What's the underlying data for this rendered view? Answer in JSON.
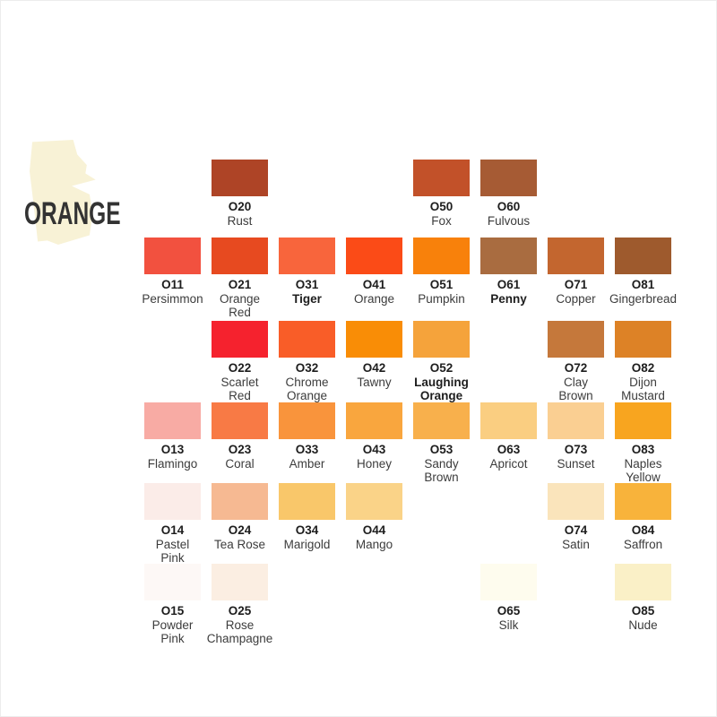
{
  "page": {
    "title": "ORANGE"
  },
  "theme": {
    "background": "#ffffff",
    "blob_color": "#F8F2D6",
    "title_color": "#333333",
    "code_color": "#1d1d1d",
    "name_color": "#3c3c3c"
  },
  "grid": {
    "columns": 8,
    "rows": 6,
    "swatches": [
      {
        "code": "O20",
        "name": "Rust",
        "color": "#AE4426",
        "row": 0,
        "col": 1
      },
      {
        "code": "O50",
        "name": "Fox",
        "color": "#C25129",
        "row": 0,
        "col": 4
      },
      {
        "code": "O60",
        "name": "Fulvous",
        "color": "#A65B34",
        "row": 0,
        "col": 5
      },
      {
        "code": "O11",
        "name": "Persimmon",
        "color": "#F2513F",
        "row": 1,
        "col": 0
      },
      {
        "code": "O21",
        "name": "Orange\nRed",
        "color": "#E74A20",
        "row": 1,
        "col": 1
      },
      {
        "code": "O31",
        "name": "Tiger",
        "color": "#F8653C",
        "row": 1,
        "col": 2,
        "bold_name": true
      },
      {
        "code": "O41",
        "name": "Orange",
        "color": "#FB4B17",
        "row": 1,
        "col": 3
      },
      {
        "code": "O51",
        "name": "Pumpkin",
        "color": "#F8810B",
        "row": 1,
        "col": 4
      },
      {
        "code": "O61",
        "name": "Penny",
        "color": "#A96C40",
        "row": 1,
        "col": 5,
        "bold_name": true
      },
      {
        "code": "O71",
        "name": "Copper",
        "color": "#C3662F",
        "row": 1,
        "col": 6
      },
      {
        "code": "O81",
        "name": "Gingerbread",
        "color": "#9E5A2D",
        "row": 1,
        "col": 7
      },
      {
        "code": "O22",
        "name": "Scarlet\nRed",
        "color": "#F5222E",
        "row": 2,
        "col": 1
      },
      {
        "code": "O32",
        "name": "Chrome\nOrange",
        "color": "#F95D28",
        "row": 2,
        "col": 2
      },
      {
        "code": "O42",
        "name": "Tawny",
        "color": "#F98D06",
        "row": 2,
        "col": 3
      },
      {
        "code": "O52",
        "name": "Laughing\nOrange",
        "color": "#F5A33B",
        "row": 2,
        "col": 4,
        "bold_name": true
      },
      {
        "code": "O72",
        "name": "Clay\nBrown",
        "color": "#C5783B",
        "row": 2,
        "col": 6
      },
      {
        "code": "O82",
        "name": "Dijon\nMustard",
        "color": "#DD8226",
        "row": 2,
        "col": 7
      },
      {
        "code": "O13",
        "name": "Flamingo",
        "color": "#F8ABA4",
        "row": 3,
        "col": 0
      },
      {
        "code": "O23",
        "name": "Coral",
        "color": "#F87A45",
        "row": 3,
        "col": 1
      },
      {
        "code": "O33",
        "name": "Amber",
        "color": "#F9943C",
        "row": 3,
        "col": 2
      },
      {
        "code": "O43",
        "name": "Honey",
        "color": "#F9A63E",
        "row": 3,
        "col": 3
      },
      {
        "code": "O53",
        "name": "Sandy\nBrown",
        "color": "#F8B04C",
        "row": 3,
        "col": 4
      },
      {
        "code": "O63",
        "name": "Apricot",
        "color": "#FACE81",
        "row": 3,
        "col": 5
      },
      {
        "code": "O73",
        "name": "Sunset",
        "color": "#FACF92",
        "row": 3,
        "col": 6
      },
      {
        "code": "O83",
        "name": "Naples\nYellow",
        "color": "#F8A51F",
        "row": 3,
        "col": 7
      },
      {
        "code": "O14",
        "name": "Pastel\nPink",
        "color": "#FBECE8",
        "row": 4,
        "col": 0
      },
      {
        "code": "O24",
        "name": "Tea Rose",
        "color": "#F6B992",
        "row": 4,
        "col": 1
      },
      {
        "code": "O34",
        "name": "Marigold",
        "color": "#F9C76A",
        "row": 4,
        "col": 2
      },
      {
        "code": "O44",
        "name": "Mango",
        "color": "#FAD388",
        "row": 4,
        "col": 3
      },
      {
        "code": "O74",
        "name": "Satin",
        "color": "#FAE4BB",
        "row": 4,
        "col": 6
      },
      {
        "code": "O84",
        "name": "Saffron",
        "color": "#F8B33B",
        "row": 4,
        "col": 7
      },
      {
        "code": "O15",
        "name": "Powder\nPink",
        "color": "#FDF8F6",
        "row": 5,
        "col": 0
      },
      {
        "code": "O25",
        "name": "Rose\nChampagne",
        "color": "#FBEEE2",
        "row": 5,
        "col": 1
      },
      {
        "code": "O65",
        "name": "Silk",
        "color": "#FEFCEE",
        "row": 5,
        "col": 5
      },
      {
        "code": "O85",
        "name": "Nude",
        "color": "#FAF0C7",
        "row": 5,
        "col": 7
      }
    ]
  }
}
